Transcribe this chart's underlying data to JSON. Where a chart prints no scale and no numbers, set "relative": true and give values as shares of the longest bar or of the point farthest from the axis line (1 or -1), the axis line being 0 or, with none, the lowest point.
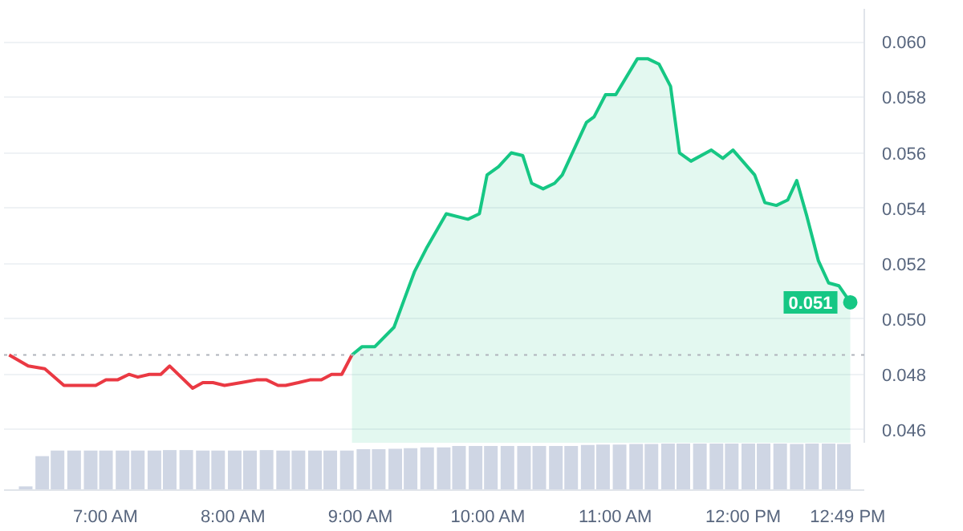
{
  "chart_data": [
    {
      "type": "line",
      "xlim": [
        6.2,
        12.95
      ],
      "ylim": [
        0.0455,
        0.0612
      ],
      "yticks": [
        {
          "value": 0.046,
          "label": "0.046"
        },
        {
          "value": 0.048,
          "label": "0.048"
        },
        {
          "value": 0.05,
          "label": "0.050"
        },
        {
          "value": 0.052,
          "label": "0.052"
        },
        {
          "value": 0.054,
          "label": "0.054"
        },
        {
          "value": 0.056,
          "label": "0.056"
        },
        {
          "value": 0.058,
          "label": "0.058"
        },
        {
          "value": 0.06,
          "label": "0.060"
        }
      ],
      "tick_labels": "y",
      "grid": "y",
      "marker": "none",
      "line_style": "solid",
      "ref_lines": [
        {
          "axis": "y",
          "value": 0.0487,
          "color": "#b0b4bc",
          "line_style": "dotted"
        }
      ],
      "annotations": [
        {
          "text": "0.051",
          "x": 12.84,
          "y": 0.0506
        }
      ],
      "series": [
        {
          "type": "line",
          "color": "#ea3943",
          "x": [
            6.24,
            6.39,
            6.52,
            6.67,
            6.84,
            6.92,
            7.0,
            7.09,
            7.18,
            7.25,
            7.34,
            7.43,
            7.5,
            7.68,
            7.76,
            7.84,
            7.93,
            8.06,
            8.18,
            8.26,
            8.35,
            8.41,
            8.51,
            8.6,
            8.69,
            8.77,
            8.85,
            8.93
          ],
          "values": [
            0.0487,
            0.0483,
            0.0482,
            0.0476,
            0.0476,
            0.0476,
            0.0478,
            0.0478,
            0.048,
            0.0479,
            0.048,
            0.048,
            0.0483,
            0.0475,
            0.0477,
            0.0477,
            0.0476,
            0.0477,
            0.0478,
            0.0478,
            0.0476,
            0.0476,
            0.0477,
            0.0478,
            0.0478,
            0.048,
            0.048,
            0.0487
          ]
        },
        {
          "type": "area",
          "color": "#16c784",
          "x": [
            8.93,
            9.01,
            9.11,
            9.26,
            9.42,
            9.52,
            9.67,
            9.84,
            9.93,
            9.99,
            10.08,
            10.18,
            10.27,
            10.34,
            10.43,
            10.52,
            10.58,
            10.77,
            10.83,
            10.92,
            11.0,
            11.17,
            11.25,
            11.34,
            11.43,
            11.5,
            11.59,
            11.75,
            11.84,
            11.92,
            12.09,
            12.17,
            12.26,
            12.35,
            12.42,
            12.5,
            12.59,
            12.67,
            12.75,
            12.84
          ],
          "values": [
            0.0487,
            0.049,
            0.049,
            0.0497,
            0.0517,
            0.0526,
            0.0538,
            0.0536,
            0.0538,
            0.0552,
            0.0555,
            0.056,
            0.0559,
            0.0549,
            0.0547,
            0.0549,
            0.0552,
            0.0571,
            0.0573,
            0.0581,
            0.0581,
            0.0594,
            0.0594,
            0.0592,
            0.0584,
            0.056,
            0.0557,
            0.0561,
            0.0558,
            0.0561,
            0.0552,
            0.0542,
            0.0541,
            0.0543,
            0.055,
            0.0537,
            0.0521,
            0.0513,
            0.0512,
            0.0506
          ]
        }
      ]
    },
    {
      "type": "bar",
      "relative": true,
      "color": "#cfd6e4",
      "xlim": [
        6.2,
        12.95
      ],
      "xticks": [
        {
          "value": 7,
          "label": "7:00 AM"
        },
        {
          "value": 8,
          "label": "8:00 AM"
        },
        {
          "value": 9,
          "label": "9:00 AM"
        },
        {
          "value": 10,
          "label": "10:00 AM"
        },
        {
          "value": 11,
          "label": "11:00 AM"
        },
        {
          "value": 12,
          "label": "12:00 PM"
        },
        {
          "value": 12.82,
          "label": "12:49 PM"
        }
      ],
      "tick_labels": "x",
      "grid": false,
      "x": [
        6.37,
        6.5,
        6.62,
        6.75,
        6.88,
        7.0,
        7.13,
        7.25,
        7.38,
        7.5,
        7.63,
        7.76,
        7.88,
        8.01,
        8.13,
        8.26,
        8.39,
        8.51,
        8.64,
        8.76,
        8.89,
        9.02,
        9.14,
        9.27,
        9.39,
        9.52,
        9.65,
        9.77,
        9.9,
        10.02,
        10.15,
        10.28,
        10.4,
        10.53,
        10.65,
        10.78,
        10.9,
        11.03,
        11.16,
        11.28,
        11.41,
        11.53,
        11.66,
        11.79,
        11.91,
        12.04,
        12.16,
        12.29,
        12.42,
        12.54,
        12.67,
        12.79
      ],
      "values": [
        0.08,
        0.73,
        0.85,
        0.85,
        0.85,
        0.85,
        0.85,
        0.85,
        0.85,
        0.86,
        0.86,
        0.85,
        0.85,
        0.85,
        0.85,
        0.86,
        0.85,
        0.85,
        0.85,
        0.85,
        0.85,
        0.88,
        0.88,
        0.89,
        0.9,
        0.92,
        0.92,
        0.95,
        0.95,
        0.95,
        0.95,
        0.95,
        0.95,
        0.95,
        0.95,
        0.97,
        0.98,
        0.98,
        0.99,
        0.99,
        1,
        1,
        1,
        1,
        1,
        1,
        1,
        1,
        0.99,
        1,
        1,
        0.99
      ]
    }
  ]
}
